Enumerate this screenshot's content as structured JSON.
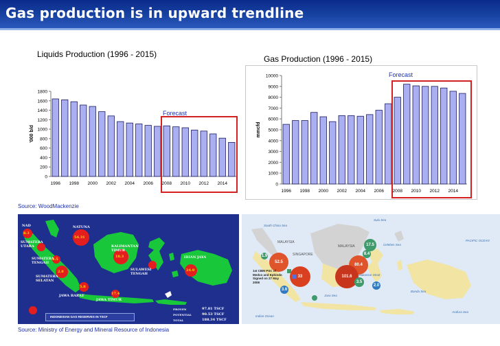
{
  "header": {
    "title": "Gas production is in upward trendline"
  },
  "colors": {
    "bar_fill": "#a9aff1",
    "bar_stroke": "#1b1b5e",
    "forecast_box": "#d42020",
    "title_bar": "#16409f",
    "source_text": "#1d2fa8"
  },
  "chart_data": [
    {
      "type": "bar",
      "title": "Liquids Production (1996 - 2015)",
      "ylabel": "'000 b/d",
      "xlabel": "",
      "categories": [
        "1996",
        "1997",
        "1998",
        "1999",
        "2000",
        "2001",
        "2002",
        "2003",
        "2004",
        "2005",
        "2006",
        "2007",
        "2008",
        "2009",
        "2010",
        "2011",
        "2012",
        "2013",
        "2014",
        "2015"
      ],
      "values": [
        1640,
        1620,
        1580,
        1510,
        1480,
        1370,
        1280,
        1160,
        1130,
        1110,
        1080,
        1060,
        1070,
        1050,
        1030,
        980,
        960,
        900,
        810,
        720
      ],
      "ylim": [
        0,
        1800
      ],
      "yticks": [
        "0",
        "200",
        "400",
        "600",
        "800",
        "1000",
        "1200",
        "1400",
        "1600",
        "1800"
      ],
      "xtick_labels": [
        "1996",
        "1998",
        "2000",
        "2002",
        "2004",
        "2006",
        "2008",
        "2010",
        "2012",
        "2014"
      ],
      "forecast_label": "Forecast",
      "forecast_from": "2008"
    },
    {
      "type": "bar",
      "title": "Gas Production (1996 - 2015)",
      "ylabel": "mmcfd",
      "xlabel": "",
      "categories": [
        "1996",
        "1997",
        "1998",
        "1999",
        "2000",
        "2001",
        "2002",
        "2003",
        "2004",
        "2005",
        "2006",
        "2007",
        "2008",
        "2009",
        "2010",
        "2011",
        "2012",
        "2013",
        "2014",
        "2015"
      ],
      "values": [
        5500,
        5850,
        5850,
        6600,
        6200,
        5750,
        6300,
        6300,
        6250,
        6400,
        6800,
        7400,
        8000,
        9200,
        9050,
        9000,
        9000,
        8850,
        8550,
        8350
      ],
      "ylim": [
        0,
        10000
      ],
      "yticks": [
        "0",
        "1000",
        "2000",
        "3000",
        "4000",
        "5000",
        "6000",
        "7000",
        "8000",
        "9000",
        "10000"
      ],
      "xtick_labels": [
        "1996",
        "1998",
        "2000",
        "2002",
        "2004",
        "2006",
        "2008",
        "2010",
        "2012",
        "2014"
      ],
      "forecast_label": "Forecast",
      "forecast_from": "2008"
    }
  ],
  "source_top": "Source: WoodMackenzie",
  "source_bottom": "Source: Ministry of Energy and Mineral Resource of Indonesia",
  "map_left": {
    "regions": [
      "NAD",
      "SUMATERA UTARA",
      "SUMATERA TENGAH",
      "SUMATERA SELATAN",
      "NATUNA",
      "KALIMANTAN TIMUR",
      "SULAWESI TENGAH",
      "IRIAN JAYA",
      "JAWA BARAT",
      "JAWA TIMUR"
    ],
    "reserve_values": [
      "54.31",
      "8.3",
      "4.5",
      "2.8",
      "5.8",
      "18.3",
      "24.9",
      "17.4"
    ],
    "legend_title": "INDONESIAN GAS RESERVES IN TSCF",
    "legend_rows": [
      {
        "label": "PROVEN",
        "value": "97.81 TSCF"
      },
      {
        "label": "POTENTIAL",
        "value": "90.53 TSCF"
      },
      {
        "label": "TOTAL",
        "value": "188.34 TSCF"
      }
    ]
  },
  "map_right": {
    "labels": [
      "MALAYSIA",
      "SINGAPORE",
      "MALAYSIA",
      "Sulu Sea",
      "Celebes Sea",
      "PACIFIC OCEAN",
      "Banda Sea",
      "Arafura Sea",
      "South China Sea",
      "Java Sea",
      "Indian Ocean",
      "Makassar Strait"
    ],
    "bubbles": [
      "17.5",
      "8.4",
      "52.5",
      "80.4",
      "33",
      "101.6",
      "3.5",
      "2.0",
      "3.6",
      "1.9"
    ],
    "note": "1st CBM PSC of Medco and Ephindo Signed on 27 May 2008"
  }
}
